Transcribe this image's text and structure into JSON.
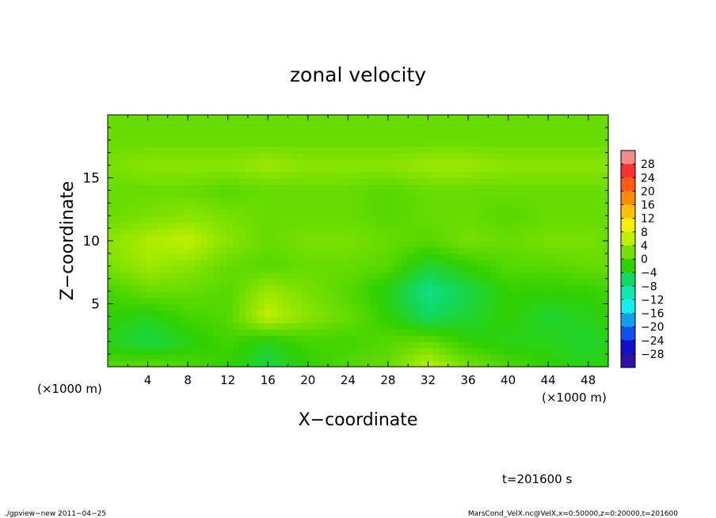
{
  "chart_data": {
    "type": "heatmap",
    "title": "zonal velocity",
    "xlabel": "X−coordinate",
    "ylabel": "Z−coordinate",
    "x_units": "(×1000 m)",
    "xlim": [
      0,
      50
    ],
    "ylim": [
      0,
      20
    ],
    "x_ticks": [
      4,
      8,
      12,
      16,
      20,
      24,
      28,
      32,
      36,
      40,
      44,
      48
    ],
    "y_ticks": [
      5,
      10,
      15
    ],
    "time_label": "t=201600 s",
    "colorbar": {
      "levels": [
        30,
        28,
        24,
        20,
        16,
        12,
        8,
        4,
        0,
        -4,
        -8,
        -12,
        -16,
        -20,
        -24,
        -28,
        -30
      ],
      "tick_labels": [
        "28",
        "24",
        "20",
        "16",
        "12",
        "8",
        "4",
        "0",
        "−4",
        "−8",
        "−12",
        "−16",
        "−20",
        "−24",
        "−28"
      ],
      "colors": [
        "#f48a8a",
        "#ff3030",
        "#ff5a10",
        "#ff8c00",
        "#ffc000",
        "#f0f000",
        "#c0f000",
        "#78e000",
        "#30d000",
        "#10d860",
        "#10e8b0",
        "#10f0f0",
        "#10a0f0",
        "#1050f0",
        "#1010d0",
        "#3010a0"
      ]
    },
    "field_description": "near-uniform field between about -8 and +8",
    "values_grid": {
      "x": [
        0,
        4,
        8,
        12,
        16,
        20,
        24,
        28,
        32,
        36,
        40,
        44,
        48,
        50
      ],
      "z": [
        0,
        2,
        4,
        6,
        8,
        10,
        12,
        14,
        16,
        18,
        20
      ],
      "u": [
        [
          0,
          1,
          0,
          -2,
          -5,
          -2,
          0,
          1,
          6,
          2,
          0,
          -2,
          -3,
          -2
        ],
        [
          -3,
          -5,
          -3,
          -1,
          -3,
          -1,
          -1,
          0,
          1,
          -2,
          -3,
          -3,
          -4,
          -3
        ],
        [
          -2,
          -3,
          -1,
          0,
          6,
          3,
          1,
          -2,
          -6,
          -4,
          -2,
          -4,
          -3,
          -2
        ],
        [
          -1,
          1,
          1,
          0,
          4,
          2,
          0,
          -3,
          -8,
          -5,
          -2,
          -2,
          -2,
          -1
        ],
        [
          2,
          4,
          3,
          1,
          0,
          1,
          1,
          0,
          -4,
          -2,
          0,
          0,
          1,
          1
        ],
        [
          3,
          5,
          6,
          3,
          1,
          2,
          2,
          1,
          0,
          2,
          1,
          2,
          2,
          1
        ],
        [
          1,
          2,
          3,
          2,
          1,
          1,
          1,
          0,
          1,
          1,
          0,
          1,
          1,
          1
        ],
        [
          1,
          1,
          1,
          0,
          1,
          1,
          1,
          0,
          1,
          1,
          1,
          1,
          1,
          1
        ],
        [
          2,
          3,
          3,
          3,
          4,
          3,
          3,
          3,
          4,
          4,
          3,
          3,
          3,
          3
        ],
        [
          1,
          1,
          1,
          1,
          1,
          1,
          1,
          1,
          1,
          1,
          1,
          1,
          1,
          1
        ],
        [
          1,
          1,
          1,
          1,
          1,
          1,
          1,
          1,
          1,
          1,
          1,
          1,
          1,
          1
        ]
      ]
    }
  },
  "footer": {
    "left": "./gpview−new  2011−04−25",
    "right": "MarsCond_VelX.nc@VelX,x=0:50000,z=0:20000,t=201600"
  }
}
